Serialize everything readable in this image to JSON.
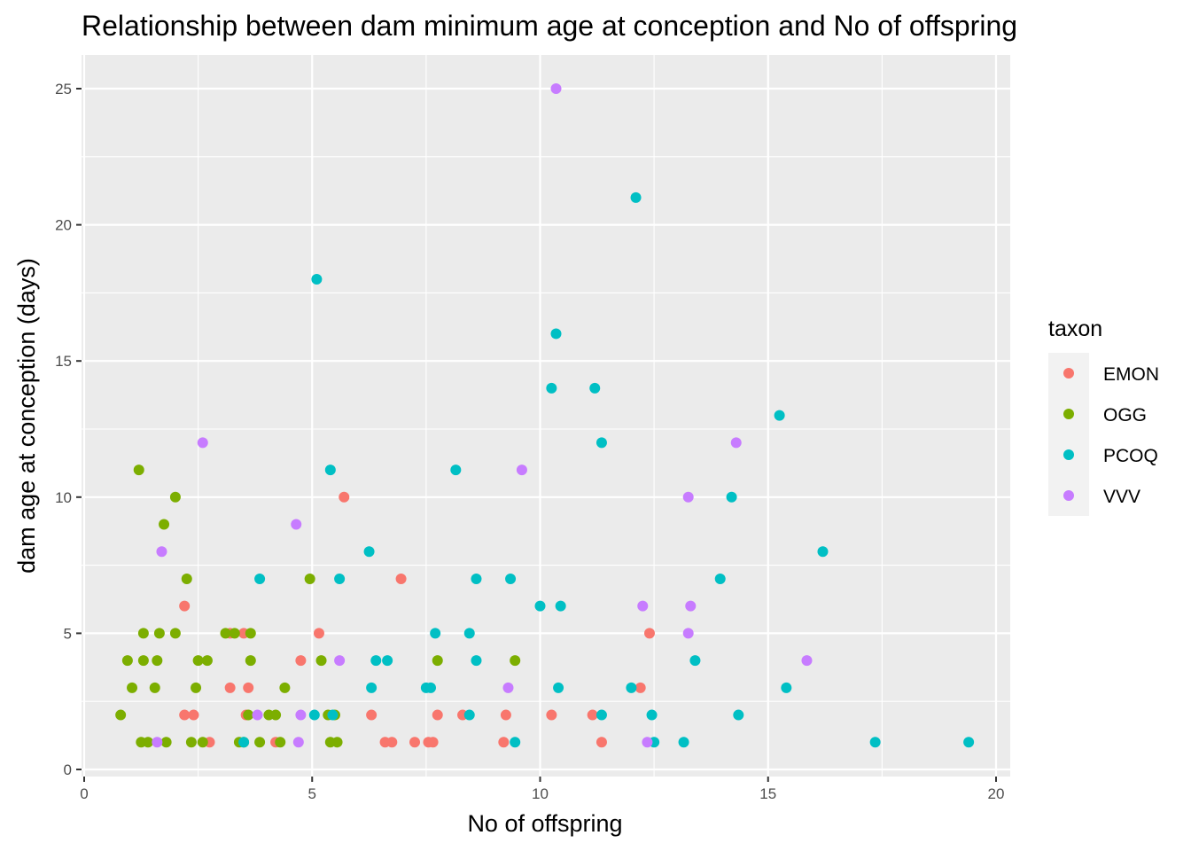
{
  "chart_data": {
    "type": "scatter",
    "title": "Relationship between dam minimum age at conception and No of offspring",
    "xlabel": "No of offspring",
    "ylabel": "dam age at conception (days)",
    "xlim": [
      0,
      20
    ],
    "ylim": [
      0,
      25
    ],
    "x_ticks": [
      "0",
      "5",
      "10",
      "15",
      "20"
    ],
    "y_ticks": [
      "0",
      "5",
      "10",
      "15",
      "20",
      "25"
    ],
    "grid": true,
    "background": "#ebebeb",
    "legend": {
      "title": "taxon",
      "position": "right"
    },
    "series": [
      {
        "name": "EMON",
        "color": "#f8766d",
        "points": [
          [
            2.2,
            6
          ],
          [
            2.2,
            2
          ],
          [
            2.4,
            2
          ],
          [
            2.75,
            1
          ],
          [
            3.2,
            5
          ],
          [
            3.2,
            3
          ],
          [
            3.5,
            5
          ],
          [
            3.6,
            3
          ],
          [
            3.55,
            2
          ],
          [
            4.2,
            1
          ],
          [
            4.75,
            4
          ],
          [
            5.15,
            5
          ],
          [
            5.7,
            10
          ],
          [
            6.3,
            2
          ],
          [
            6.6,
            1
          ],
          [
            6.75,
            1
          ],
          [
            6.95,
            7
          ],
          [
            7.25,
            1
          ],
          [
            7.55,
            1
          ],
          [
            7.65,
            1
          ],
          [
            7.75,
            2
          ],
          [
            8.3,
            2
          ],
          [
            9.2,
            1
          ],
          [
            9.25,
            2
          ],
          [
            10.25,
            2
          ],
          [
            11.15,
            2
          ],
          [
            11.35,
            1
          ],
          [
            12.2,
            3
          ],
          [
            12.4,
            5
          ]
        ]
      },
      {
        "name": "OGG",
        "color": "#7cae00",
        "points": [
          [
            0.8,
            2
          ],
          [
            0.95,
            4
          ],
          [
            1.05,
            3
          ],
          [
            1.2,
            11
          ],
          [
            1.25,
            1
          ],
          [
            1.3,
            5
          ],
          [
            1.3,
            4
          ],
          [
            1.4,
            1
          ],
          [
            1.55,
            3
          ],
          [
            1.6,
            4
          ],
          [
            1.65,
            5
          ],
          [
            1.75,
            9
          ],
          [
            1.8,
            1
          ],
          [
            2.0,
            10
          ],
          [
            2.0,
            5
          ],
          [
            2.25,
            7
          ],
          [
            2.35,
            1
          ],
          [
            2.45,
            3
          ],
          [
            2.5,
            4
          ],
          [
            2.6,
            1
          ],
          [
            2.7,
            4
          ],
          [
            3.1,
            5
          ],
          [
            3.3,
            5
          ],
          [
            3.4,
            1
          ],
          [
            3.5,
            1
          ],
          [
            3.6,
            2
          ],
          [
            3.65,
            4
          ],
          [
            3.65,
            5
          ],
          [
            3.85,
            1
          ],
          [
            4.05,
            2
          ],
          [
            4.2,
            2
          ],
          [
            4.3,
            1
          ],
          [
            4.4,
            3
          ],
          [
            4.95,
            7
          ],
          [
            5.2,
            4
          ],
          [
            5.35,
            2
          ],
          [
            5.4,
            1
          ],
          [
            5.5,
            2
          ],
          [
            5.55,
            1
          ],
          [
            7.75,
            4
          ],
          [
            9.45,
            4
          ]
        ]
      },
      {
        "name": "PCOQ",
        "color": "#00bfc4",
        "points": [
          [
            3.5,
            1
          ],
          [
            3.85,
            7
          ],
          [
            5.05,
            2
          ],
          [
            5.1,
            18
          ],
          [
            5.4,
            11
          ],
          [
            5.45,
            2
          ],
          [
            5.6,
            7
          ],
          [
            6.25,
            8
          ],
          [
            6.3,
            3
          ],
          [
            6.4,
            4
          ],
          [
            6.65,
            4
          ],
          [
            7.5,
            3
          ],
          [
            7.6,
            3
          ],
          [
            7.7,
            5
          ],
          [
            8.15,
            11
          ],
          [
            8.45,
            2
          ],
          [
            8.45,
            5
          ],
          [
            8.6,
            7
          ],
          [
            8.6,
            4
          ],
          [
            9.35,
            7
          ],
          [
            9.45,
            1
          ],
          [
            10.0,
            6
          ],
          [
            10.25,
            14
          ],
          [
            10.35,
            16
          ],
          [
            10.4,
            3
          ],
          [
            10.45,
            6
          ],
          [
            11.2,
            14
          ],
          [
            11.35,
            12
          ],
          [
            11.35,
            2
          ],
          [
            12.0,
            3
          ],
          [
            12.1,
            21
          ],
          [
            12.45,
            2
          ],
          [
            12.5,
            1
          ],
          [
            13.15,
            1
          ],
          [
            13.4,
            4
          ],
          [
            13.95,
            7
          ],
          [
            14.2,
            10
          ],
          [
            14.35,
            2
          ],
          [
            15.25,
            13
          ],
          [
            15.4,
            3
          ],
          [
            16.2,
            8
          ],
          [
            17.35,
            1
          ],
          [
            19.4,
            1
          ]
        ]
      },
      {
        "name": "VVV",
        "color": "#c77cff",
        "points": [
          [
            1.6,
            1
          ],
          [
            1.7,
            8
          ],
          [
            2.6,
            12
          ],
          [
            3.8,
            2
          ],
          [
            4.65,
            9
          ],
          [
            4.75,
            2
          ],
          [
            4.7,
            1
          ],
          [
            5.6,
            4
          ],
          [
            9.3,
            3
          ],
          [
            9.6,
            11
          ],
          [
            10.35,
            25
          ],
          [
            12.25,
            6
          ],
          [
            12.35,
            1
          ],
          [
            13.25,
            10
          ],
          [
            13.3,
            6
          ],
          [
            13.25,
            5
          ],
          [
            14.3,
            12
          ],
          [
            15.85,
            4
          ]
        ]
      }
    ]
  }
}
